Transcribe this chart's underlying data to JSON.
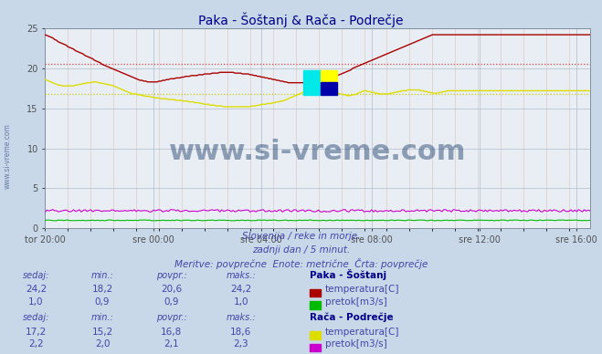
{
  "title": "Paka - Šoštanj & Rača - Podrečje",
  "bg_color": "#c8d8e8",
  "plot_bg_color": "#e8eef4",
  "grid_color_major": "#b0bcc8",
  "grid_color_minor": "#e0c8c8",
  "x_labels": [
    "tor 20:00",
    "sre 00:00",
    "sre 04:00",
    "sre 08:00",
    "sre 12:00",
    "sre 16:00"
  ],
  "x_ticks_frac": [
    0.0,
    0.2,
    0.4,
    0.6,
    0.8,
    0.978
  ],
  "n_points": 288,
  "ylim": [
    0,
    25
  ],
  "yticks": [
    0,
    5,
    10,
    15,
    20,
    25
  ],
  "watermark_text": "www.si-vreme.com",
  "subtitle1": "Slovenija / reke in morje.",
  "subtitle2": "zadnji dan / 5 minut.",
  "subtitle3": "Meritve: povprečne  Enote: metrične  Črta: povprečje",
  "station1_name": "Paka - Šoštanj",
  "station2_name": "Rača - Podrečje",
  "legend_labels": [
    "temperatura[C]",
    "pretok[m3/s]"
  ],
  "table_headers": [
    "sedaj:",
    "min.:",
    "povpr.:",
    "maks.:"
  ],
  "station1_temp": {
    "sedaj": "24,2",
    "min": "18,2",
    "povpr": "20,6",
    "maks": "24,2"
  },
  "station1_flow": {
    "sedaj": "1,0",
    "min": "0,9",
    "povpr": "0,9",
    "maks": "1,0"
  },
  "station2_temp": {
    "sedaj": "17,2",
    "min": "15,2",
    "povpr": "16,8",
    "maks": "18,6"
  },
  "station2_flow": {
    "sedaj": "2,2",
    "min": "2,0",
    "povpr": "2,1",
    "maks": "2,3"
  },
  "colors": {
    "paka_temp": "#aa0000",
    "paka_flow": "#00bb00",
    "raca_temp": "#dddd00",
    "raca_flow": "#cc00cc",
    "avg_paka": "#dd4444",
    "avg_raca": "#cccc00",
    "text_blue": "#4444aa",
    "title_color": "#000088",
    "watermark_color": "#1a3a6a"
  },
  "paka_temp_avg": 20.6,
  "raca_temp_avg": 16.8,
  "paka_temp_data": [
    24.2,
    24.1,
    24.0,
    23.9,
    23.8,
    23.6,
    23.5,
    23.3,
    23.2,
    23.1,
    23.0,
    22.9,
    22.7,
    22.6,
    22.5,
    22.4,
    22.2,
    22.1,
    22.0,
    21.9,
    21.8,
    21.6,
    21.5,
    21.4,
    21.3,
    21.2,
    21.0,
    20.9,
    20.8,
    20.7,
    20.5,
    20.4,
    20.3,
    20.2,
    20.1,
    20.0,
    19.9,
    19.8,
    19.7,
    19.6,
    19.5,
    19.4,
    19.3,
    19.2,
    19.1,
    19.0,
    18.9,
    18.8,
    18.7,
    18.6,
    18.5,
    18.5,
    18.4,
    18.4,
    18.3,
    18.3,
    18.3,
    18.3,
    18.3,
    18.3,
    18.4,
    18.4,
    18.5,
    18.5,
    18.6,
    18.6,
    18.7,
    18.7,
    18.7,
    18.8,
    18.8,
    18.8,
    18.9,
    18.9,
    19.0,
    19.0,
    19.0,
    19.1,
    19.1,
    19.1,
    19.1,
    19.2,
    19.2,
    19.2,
    19.3,
    19.3,
    19.3,
    19.3,
    19.4,
    19.4,
    19.4,
    19.4,
    19.5,
    19.5,
    19.5,
    19.5,
    19.5,
    19.5,
    19.5,
    19.5,
    19.4,
    19.4,
    19.4,
    19.4,
    19.3,
    19.3,
    19.3,
    19.3,
    19.2,
    19.2,
    19.1,
    19.1,
    19.0,
    19.0,
    18.9,
    18.9,
    18.8,
    18.8,
    18.7,
    18.7,
    18.6,
    18.6,
    18.5,
    18.5,
    18.4,
    18.4,
    18.3,
    18.3,
    18.2,
    18.2,
    18.2,
    18.2,
    18.2,
    18.2,
    18.2,
    18.2,
    18.2,
    18.3,
    18.3,
    18.3,
    18.4,
    18.4,
    18.5,
    18.5,
    18.6,
    18.6,
    18.7,
    18.7,
    18.8,
    18.8,
    18.9,
    18.9,
    19.0,
    19.0,
    19.1,
    19.2,
    19.3,
    19.4,
    19.5,
    19.6,
    19.7,
    19.8,
    20.0,
    20.1,
    20.2,
    20.3,
    20.4,
    20.5,
    20.6,
    20.7,
    20.8,
    20.9,
    21.0,
    21.1,
    21.2,
    21.3,
    21.4,
    21.5,
    21.6,
    21.7,
    21.8,
    21.9,
    22.0,
    22.1,
    22.2,
    22.3,
    22.4,
    22.5,
    22.6,
    22.7,
    22.8,
    22.9,
    23.0,
    23.1,
    23.2,
    23.3,
    23.4,
    23.5,
    23.6,
    23.7,
    23.8,
    23.9,
    24.0,
    24.1,
    24.2,
    24.2,
    24.2,
    24.2,
    24.2,
    24.2,
    24.2,
    24.2,
    24.2,
    24.2,
    24.2,
    24.2,
    24.2,
    24.2,
    24.2,
    24.2,
    24.2,
    24.2,
    24.2,
    24.2,
    24.2,
    24.2,
    24.2,
    24.2,
    24.2,
    24.2,
    24.2,
    24.2,
    24.2,
    24.2,
    24.2,
    24.2,
    24.2,
    24.2,
    24.2,
    24.2,
    24.2,
    24.2,
    24.2,
    24.2,
    24.2,
    24.2,
    24.2,
    24.2,
    24.2,
    24.2,
    24.2,
    24.2,
    24.2,
    24.2,
    24.2,
    24.2,
    24.2,
    24.2,
    24.2,
    24.2,
    24.2,
    24.2,
    24.2,
    24.2,
    24.2,
    24.2,
    24.2,
    24.2,
    24.2,
    24.2,
    24.2,
    24.2,
    24.2,
    24.2,
    24.2,
    24.2,
    24.2,
    24.2,
    24.2,
    24.2,
    24.2,
    24.2,
    24.2,
    24.2,
    24.2,
    24.2,
    24.2,
    24.2
  ],
  "raca_temp_data": [
    18.6,
    18.5,
    18.4,
    18.3,
    18.2,
    18.1,
    18.0,
    17.9,
    17.9,
    17.8,
    17.8,
    17.8,
    17.8,
    17.8,
    17.8,
    17.8,
    17.9,
    17.9,
    18.0,
    18.0,
    18.1,
    18.1,
    18.2,
    18.2,
    18.2,
    18.3,
    18.3,
    18.3,
    18.2,
    18.2,
    18.1,
    18.1,
    18.0,
    18.0,
    17.9,
    17.9,
    17.8,
    17.7,
    17.6,
    17.5,
    17.4,
    17.3,
    17.2,
    17.1,
    17.0,
    16.9,
    16.8,
    16.8,
    16.8,
    16.7,
    16.7,
    16.6,
    16.6,
    16.5,
    16.5,
    16.5,
    16.4,
    16.4,
    16.3,
    16.3,
    16.3,
    16.2,
    16.2,
    16.2,
    16.2,
    16.1,
    16.1,
    16.1,
    16.1,
    16.0,
    16.0,
    16.0,
    16.0,
    15.9,
    15.9,
    15.9,
    15.8,
    15.8,
    15.8,
    15.7,
    15.7,
    15.7,
    15.6,
    15.6,
    15.5,
    15.5,
    15.5,
    15.4,
    15.4,
    15.4,
    15.3,
    15.3,
    15.3,
    15.3,
    15.2,
    15.2,
    15.2,
    15.2,
    15.2,
    15.2,
    15.2,
    15.2,
    15.2,
    15.2,
    15.2,
    15.2,
    15.2,
    15.2,
    15.2,
    15.3,
    15.3,
    15.3,
    15.4,
    15.4,
    15.5,
    15.5,
    15.5,
    15.6,
    15.6,
    15.6,
    15.7,
    15.7,
    15.8,
    15.8,
    15.9,
    15.9,
    16.0,
    16.1,
    16.2,
    16.3,
    16.4,
    16.5,
    16.6,
    16.7,
    16.8,
    16.9,
    17.0,
    17.1,
    17.2,
    17.3,
    17.4,
    17.4,
    17.5,
    17.5,
    17.5,
    17.5,
    17.4,
    17.4,
    17.3,
    17.3,
    17.2,
    17.1,
    17.0,
    17.0,
    16.9,
    16.8,
    16.8,
    16.7,
    16.7,
    16.6,
    16.6,
    16.6,
    16.7,
    16.7,
    16.8,
    16.9,
    17.0,
    17.1,
    17.2,
    17.2,
    17.1,
    17.1,
    17.0,
    17.0,
    16.9,
    16.9,
    16.8,
    16.8,
    16.8,
    16.8,
    16.8,
    16.8,
    16.9,
    16.9,
    17.0,
    17.0,
    17.1,
    17.1,
    17.2,
    17.2,
    17.2,
    17.3,
    17.3,
    17.3,
    17.3,
    17.3,
    17.3,
    17.3,
    17.2,
    17.2,
    17.1,
    17.1,
    17.0,
    17.0,
    16.9,
    16.9,
    16.9,
    16.9,
    17.0,
    17.0,
    17.1,
    17.1,
    17.2,
    17.2,
    17.2,
    17.2,
    17.2,
    17.2,
    17.2,
    17.2,
    17.2,
    17.2,
    17.2,
    17.2,
    17.2,
    17.2,
    17.2,
    17.2,
    17.2,
    17.2,
    17.2,
    17.2,
    17.2,
    17.2,
    17.2,
    17.2,
    17.2,
    17.2,
    17.2,
    17.2,
    17.2,
    17.2,
    17.2,
    17.2,
    17.2,
    17.2,
    17.2,
    17.2,
    17.2,
    17.2,
    17.2,
    17.2,
    17.2,
    17.2,
    17.2,
    17.2,
    17.2,
    17.2,
    17.2,
    17.2,
    17.2,
    17.2,
    17.2,
    17.2,
    17.2,
    17.2,
    17.2,
    17.2,
    17.2,
    17.2,
    17.2,
    17.2,
    17.2,
    17.2,
    17.2,
    17.2,
    17.2,
    17.2,
    17.2,
    17.2,
    17.2,
    17.2,
    17.2,
    17.2,
    17.2,
    17.2,
    17.2,
    17.2
  ]
}
